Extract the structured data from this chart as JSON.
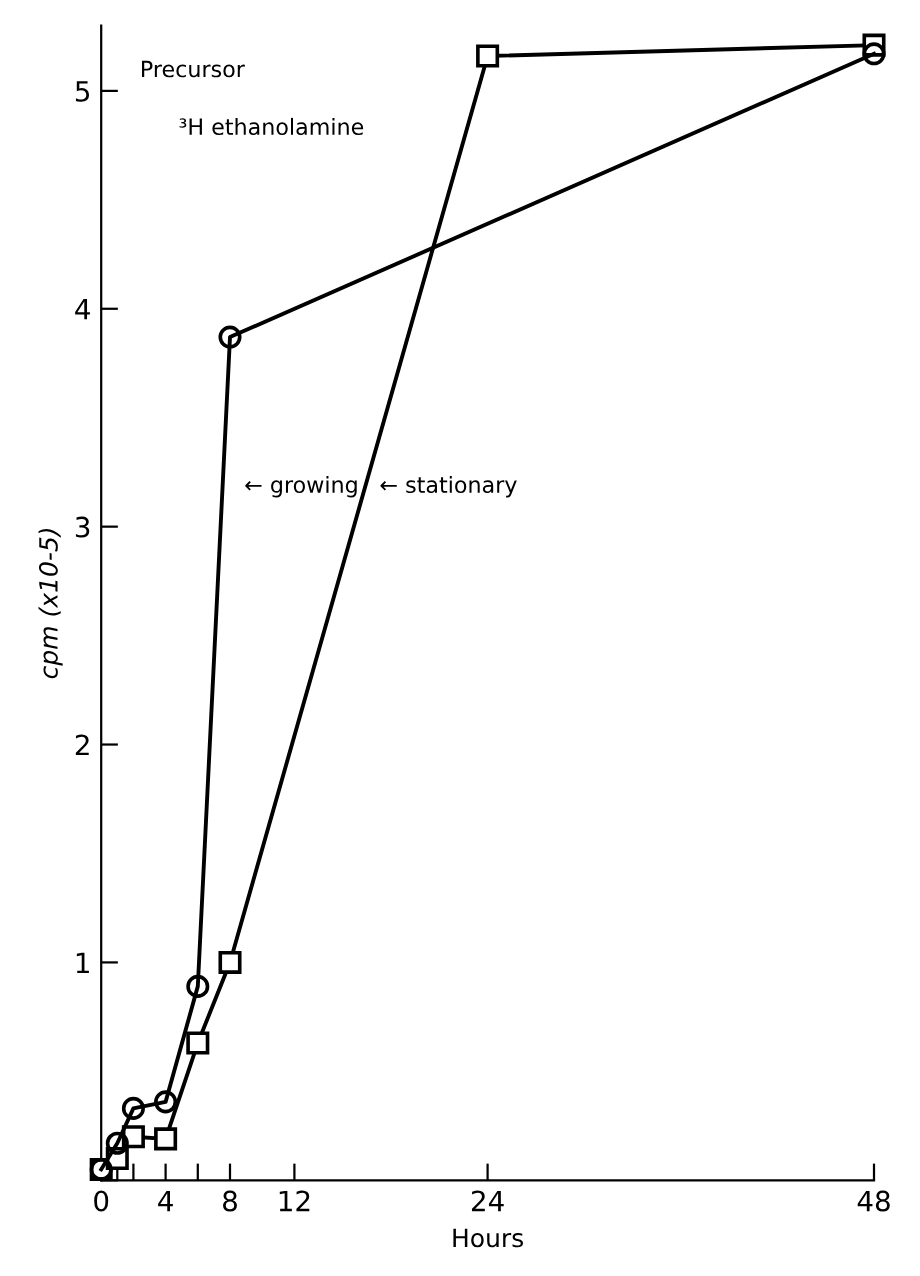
{
  "chart_data": {
    "type": "line",
    "xlabel": "Hours",
    "ylabel": "cpm (x10-5)",
    "xlim": [
      0,
      48
    ],
    "ylim": [
      0,
      5.3
    ],
    "xticks": [
      0,
      {
        "value": 1,
        "label": null
      },
      {
        "value": 2,
        "label": null
      },
      4,
      {
        "value": 6,
        "label": null
      },
      8,
      12,
      24,
      48
    ],
    "yticks": [
      {
        "value": 0,
        "label": null
      },
      1,
      2,
      3,
      4,
      5
    ],
    "grid": false,
    "legend": false,
    "line_style": "solid",
    "series": [
      {
        "color": "#000000",
        "marker": "circle",
        "x": [
          0,
          1,
          2,
          4,
          6,
          8,
          48
        ],
        "values": [
          0.05,
          0.17,
          0.33,
          0.36,
          0.89,
          3.87,
          5.17
        ]
      },
      {
        "color": "#000000",
        "marker": "square",
        "x": [
          0,
          1,
          2,
          4,
          6,
          8,
          24,
          48
        ],
        "values": [
          0.05,
          0.1,
          0.2,
          0.19,
          0.63,
          1.0,
          5.16,
          5.21
        ]
      }
    ],
    "annotations": [
      "Precursor",
      "³H ethanolamine",
      "← growing",
      "← stationary"
    ]
  }
}
